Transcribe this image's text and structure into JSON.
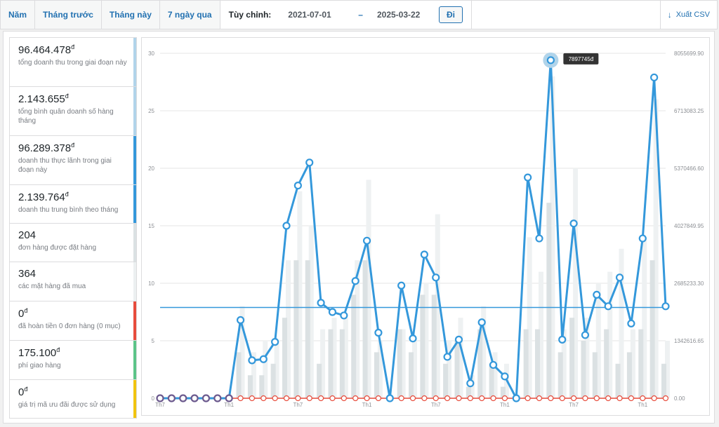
{
  "tabs": [
    {
      "label": "Năm"
    },
    {
      "label": "Tháng trước"
    },
    {
      "label": "Tháng này"
    },
    {
      "label": "7 ngày qua"
    }
  ],
  "custom": {
    "label": "Tùy chỉnh:",
    "from": "2021-07-01",
    "dash": "–",
    "to": "2025-03-22",
    "go_label": "Đi"
  },
  "export": {
    "label": "Xuất CSV",
    "icon": "download-arrow-icon"
  },
  "legend": [
    {
      "amount": "96.464.478",
      "currency": "đ",
      "desc": "tổng doanh thu trong giai đoạn này",
      "color": "#b1d4ea",
      "height": 70
    },
    {
      "amount": "2.143.655",
      "currency": "đ",
      "desc": "tổng bình quân doanh số hàng tháng",
      "color": "#b1d4ea",
      "height": 70
    },
    {
      "amount": "96.289.378",
      "currency": "đ",
      "desc": "doanh thu thực lãnh trong giai đoạn này",
      "color": "#3498db",
      "height": 70
    },
    {
      "amount": "2.139.764",
      "currency": "đ",
      "desc": "doanh thu trung bình theo tháng",
      "color": "#3498db",
      "height": 55
    },
    {
      "amount": "204",
      "currency": "",
      "desc": "đơn hàng được đặt hàng",
      "color": "#dbe1e3",
      "height": 55
    },
    {
      "amount": "364",
      "currency": "",
      "desc": "các mặt hàng đã mua",
      "color": "#ecf0f1",
      "height": 56
    },
    {
      "amount": "0",
      "currency": "đ",
      "desc": "đã hoàn tiền 0 đơn hàng (0 mục)",
      "color": "#e74c3c",
      "height": 56
    },
    {
      "amount": "175.100",
      "currency": "đ",
      "desc": "phí giao hàng",
      "color": "#5cc488",
      "height": 56
    },
    {
      "amount": "0",
      "currency": "đ",
      "desc": "giá trị mã ưu đãi được sử dụng",
      "color": "#f1c40f",
      "height": 56
    }
  ],
  "chart_data": {
    "type": "line",
    "left_axis": {
      "min": 0,
      "max": 30,
      "ticks": [
        0,
        5,
        10,
        15,
        20,
        25,
        30
      ]
    },
    "right_axis": {
      "min": 0,
      "max": 8055699.9,
      "ticks": [
        "0.00",
        "1342616.65",
        "2685233.30",
        "4027849.95",
        "5370466.60",
        "6713083.25",
        "8055699.90"
      ]
    },
    "x_labels": [
      "Th7",
      "Th1",
      "Th7",
      "Th1",
      "Th7",
      "Th1",
      "Th7",
      "Th1"
    ],
    "tooltip": "7897745đ",
    "tooltip_index": 34,
    "average_line": 7.9,
    "line_values": [
      0,
      0,
      0,
      0,
      0,
      0,
      0,
      6.8,
      3.3,
      3.4,
      4.9,
      15.0,
      18.5,
      20.5,
      8.3,
      7.5,
      7.2,
      10.2,
      13.7,
      5.7,
      0,
      9.8,
      5.2,
      12.5,
      10.5,
      3.6,
      5.1,
      1.3,
      6.6,
      2.9,
      1.9,
      0,
      19.2,
      13.9,
      29.4,
      5.1,
      15.2,
      5.5,
      9.0,
      8.0,
      10.5,
      6.5,
      13.9,
      27.9,
      8.0
    ],
    "bars_light": [
      0,
      0,
      0,
      0,
      0,
      0,
      0,
      8,
      4,
      5,
      5,
      12,
      18,
      15,
      6,
      7,
      7,
      12,
      19,
      5,
      0,
      6,
      5,
      10,
      16,
      5,
      7,
      2,
      8,
      4,
      3,
      0,
      14,
      11,
      28,
      6,
      20,
      7,
      10,
      11,
      13,
      6,
      14,
      26,
      5
    ],
    "bars_dark": [
      0,
      0,
      0,
      0,
      0,
      0,
      0,
      4,
      2,
      2,
      3,
      7,
      12,
      12,
      3,
      6,
      6,
      9,
      12,
      4,
      0,
      6,
      4,
      9,
      9,
      3,
      5,
      1,
      6,
      3,
      1,
      0,
      6,
      6,
      17,
      4,
      7,
      5,
      4,
      6,
      3,
      4,
      6,
      12,
      3
    ]
  }
}
